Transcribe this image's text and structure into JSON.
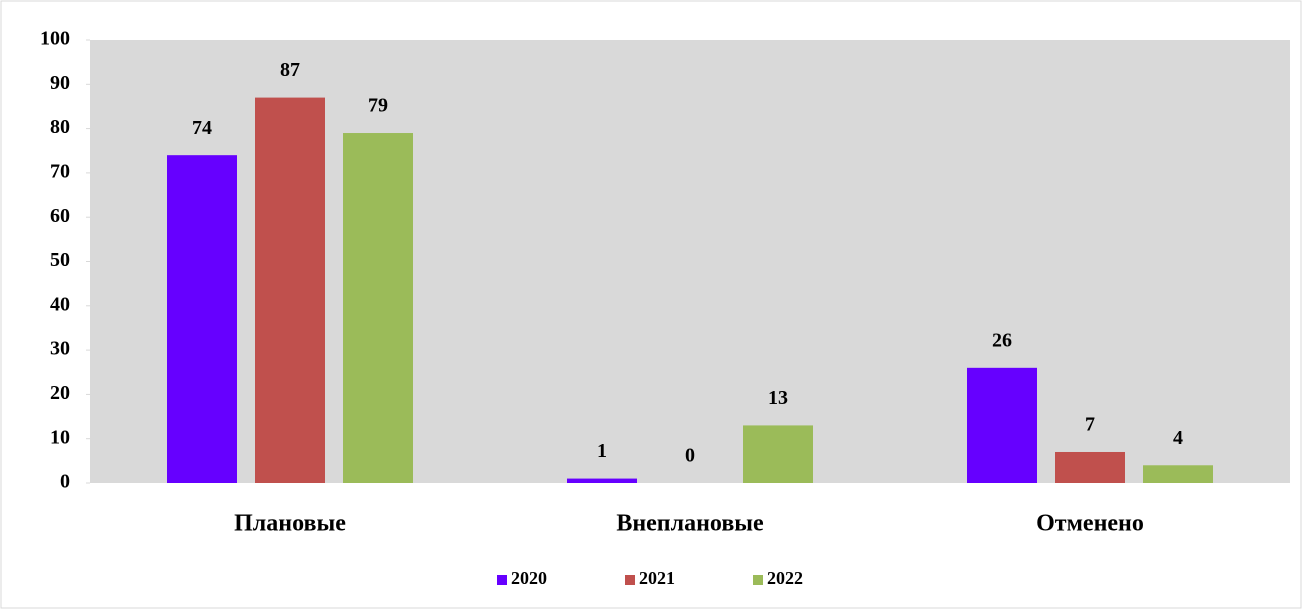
{
  "chart_data": {
    "type": "bar",
    "categories": [
      "Плановые",
      "Внеплановые",
      "Отменено"
    ],
    "series": [
      {
        "name": "2020",
        "color": "#6600ff",
        "values": [
          74,
          1,
          26
        ]
      },
      {
        "name": "2021",
        "color": "#c0504d",
        "values": [
          87,
          0,
          7
        ]
      },
      {
        "name": "2022",
        "color": "#9bbb59",
        "values": [
          79,
          13,
          4
        ]
      }
    ],
    "ylim": [
      0,
      100
    ],
    "yticks": [
      0,
      10,
      20,
      30,
      40,
      50,
      60,
      70,
      80,
      90,
      100
    ],
    "legend": "bottom"
  }
}
